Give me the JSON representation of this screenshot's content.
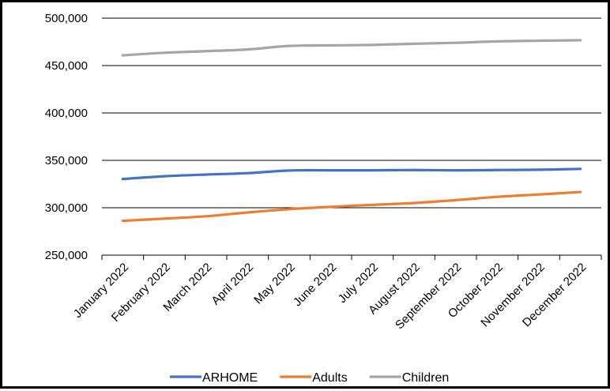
{
  "chart_data": {
    "type": "line",
    "title": "",
    "xlabel": "",
    "ylabel": "",
    "categories": [
      "January 2022",
      "February 2022",
      "March 2022",
      "April 2022",
      "May 2022",
      "June 2022",
      "July 2022",
      "August 2022",
      "September 2022",
      "October 2022",
      "November 2022",
      "December 2022"
    ],
    "ylim": [
      250000,
      500000
    ],
    "yticks": [
      250000,
      300000,
      350000,
      400000,
      450000,
      500000
    ],
    "ytick_labels": [
      "250,000",
      "300,000",
      "350,000",
      "400,000",
      "450,000",
      "500,000"
    ],
    "grid": true,
    "legend_position": "bottom",
    "series": [
      {
        "name": "ARHOME",
        "color": "#4472c4",
        "values": [
          330300,
          333200,
          335000,
          336500,
          339300,
          339500,
          339500,
          339800,
          339500,
          339800,
          340100,
          341000
        ]
      },
      {
        "name": "Adults",
        "color": "#ed7d31",
        "values": [
          286200,
          288500,
          291000,
          295000,
          298500,
          301000,
          303000,
          305000,
          308000,
          311500,
          314000,
          316600
        ]
      },
      {
        "name": "Children",
        "color": "#a5a5a5",
        "values": [
          460800,
          463500,
          465200,
          467000,
          470700,
          471300,
          471800,
          473000,
          474000,
          475500,
          476200,
          476700
        ]
      }
    ]
  }
}
